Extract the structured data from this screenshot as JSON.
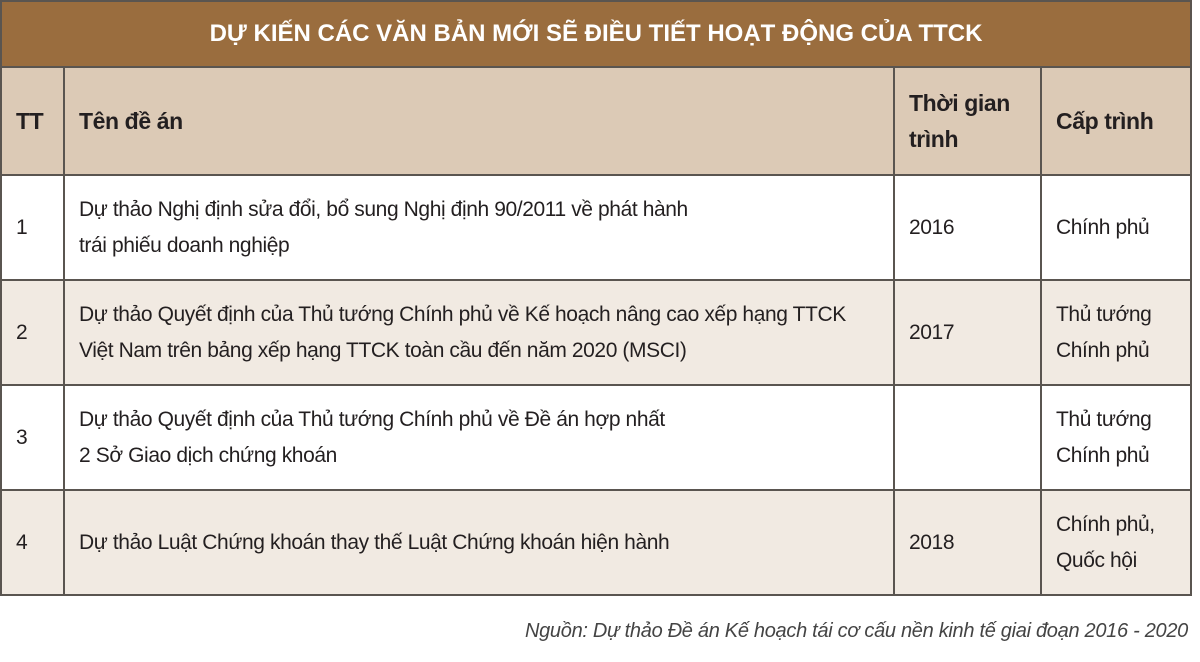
{
  "title": "DỰ KIẾN CÁC VĂN BẢN MỚI SẼ ĐIỀU TIẾT HOẠT ĐỘNG CỦA TTCK",
  "headers": {
    "tt": "TT",
    "name": "Tên đề án",
    "time_line1": "Thời gian",
    "time_line2": "trình",
    "level": "Cấp trình"
  },
  "rows": [
    {
      "tt": "1",
      "name1": "Dự thảo Nghị định sửa đổi, bổ sung Nghị định 90/2011 về phát hành",
      "name2": "trái phiếu doanh nghiệp",
      "time": "2016",
      "level1": "Chính phủ",
      "level2": ""
    },
    {
      "tt": "2",
      "name1": "Dự thảo Quyết định của Thủ tướng Chính phủ về Kế hoạch nâng cao xếp hạng TTCK",
      "name2": "Việt Nam trên bảng xếp hạng TTCK toàn cầu đến năm 2020 (MSCI)",
      "time": "2017",
      "level1": "Thủ tướng",
      "level2": "Chính phủ"
    },
    {
      "tt": "3",
      "name1": "Dự thảo Quyết định của Thủ tướng Chính phủ về Đề án hợp nhất",
      "name2": "2 Sở Giao dịch chứng khoán",
      "time": "",
      "level1": "Thủ tướng",
      "level2": "Chính phủ"
    },
    {
      "tt": "4",
      "name1": "Dự thảo Luật Chứng khoán thay thế Luật Chứng khoán hiện hành",
      "name2": "",
      "time": "2018",
      "level1": "Chính phủ,",
      "level2": "Quốc hội"
    }
  ],
  "source": "Nguồn: Dự thảo Đề án Kế hoạch tái cơ cấu nền kinh tế giai đoạn 2016 - 2020",
  "colors": {
    "title_bg": "#9a6d3e",
    "header_bg": "#dccab6",
    "alt_row_bg": "#f1eae2"
  }
}
